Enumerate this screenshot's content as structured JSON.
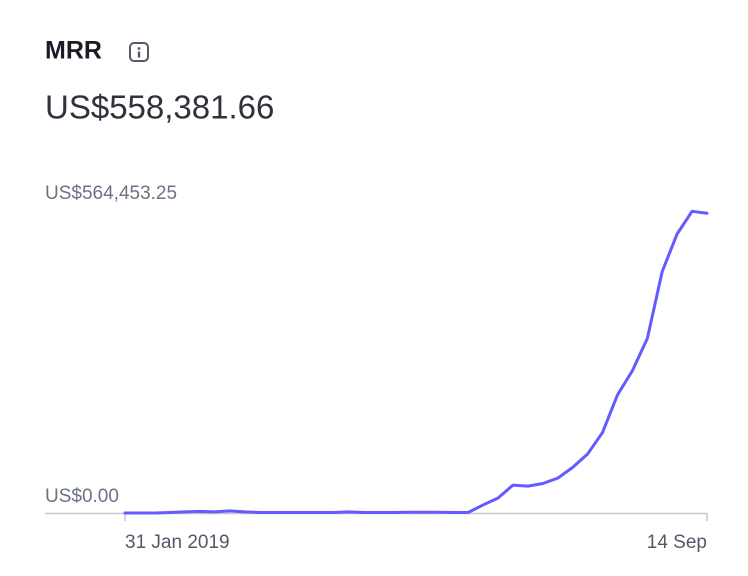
{
  "chart_data": {
    "type": "line",
    "title": "MRR",
    "subtitle": "US$558,381.66",
    "categories": [
      "31 Jan 2019",
      null,
      null,
      null,
      null,
      null,
      null,
      null,
      null,
      null,
      null,
      null,
      null,
      null,
      null,
      null,
      null,
      null,
      null,
      null,
      null,
      null,
      null,
      null,
      null,
      null,
      null,
      null,
      null,
      null,
      null,
      null,
      null,
      null,
      null,
      null,
      null,
      null,
      null,
      "14 Sep"
    ],
    "series": [
      {
        "color": "#635bff",
        "values": [
          0,
          0,
          0,
          1000,
          2000,
          3000,
          2000,
          4000,
          2000,
          1000,
          1000,
          1000,
          1000,
          1000,
          1000,
          2000,
          1000,
          1000,
          1000,
          1500,
          1500,
          1500,
          1000,
          1000,
          15000,
          28000,
          52000,
          50000,
          55000,
          65000,
          85000,
          110000,
          150000,
          220000,
          265000,
          325000,
          450000,
          520000,
          562000,
          558381.66
        ]
      }
    ],
    "ylim": [
      0,
      564453.25
    ],
    "yticks": [
      {
        "value": 0,
        "label": "US$0.00"
      },
      {
        "value": 564453.25,
        "label": "US$564,453.25"
      }
    ],
    "grid": false
  }
}
